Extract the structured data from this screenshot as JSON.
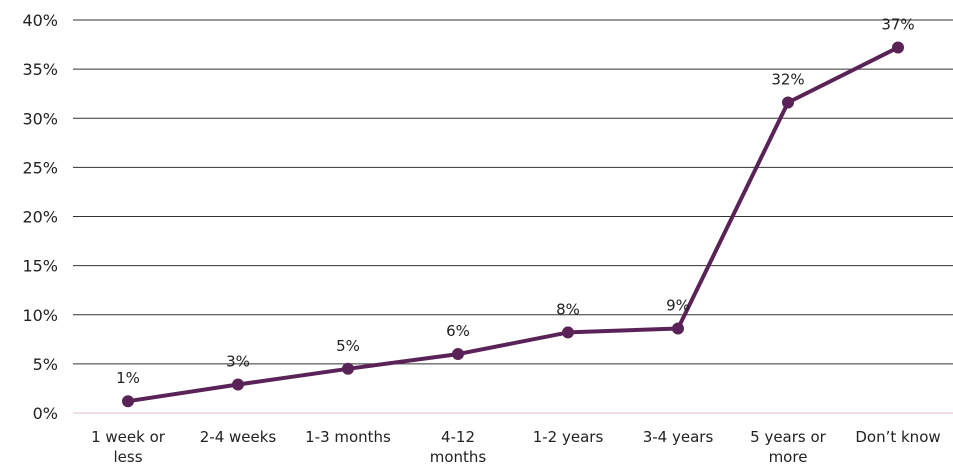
{
  "chart_data": {
    "type": "line",
    "title": "",
    "xlabel": "",
    "ylabel": "",
    "categories": [
      "1 week or less",
      "2-4 weeks",
      "1-3 months",
      "4-12 months",
      "1-2 years",
      "3-4 years",
      "5 years or more",
      "Don’t know"
    ],
    "category_lines": [
      [
        "1 week or",
        "less"
      ],
      [
        "2-4 weeks"
      ],
      [
        "1-3 months"
      ],
      [
        "4-12",
        "months"
      ],
      [
        "1-2 years"
      ],
      [
        "3-4 years"
      ],
      [
        "5 years or",
        "more"
      ],
      [
        "Don’t know"
      ]
    ],
    "series": [
      {
        "values": [
          1.2,
          2.9,
          4.5,
          6.0,
          8.2,
          8.6,
          31.6,
          37.2
        ],
        "labels": [
          "1%",
          "3%",
          "5%",
          "6%",
          "8%",
          "9%",
          "32%",
          "37%"
        ],
        "color": "#5a2358"
      }
    ],
    "ylim": [
      0,
      40
    ],
    "yticks": [
      0,
      5,
      10,
      15,
      20,
      25,
      30,
      35,
      40
    ],
    "ytick_labels": [
      "0%",
      "5%",
      "10%",
      "15%",
      "20%",
      "25%",
      "30%",
      "35%",
      "40%"
    ],
    "grid": true,
    "gridline_color": "#333333",
    "baseline_color": "#e8c9d8",
    "legend": "none"
  }
}
